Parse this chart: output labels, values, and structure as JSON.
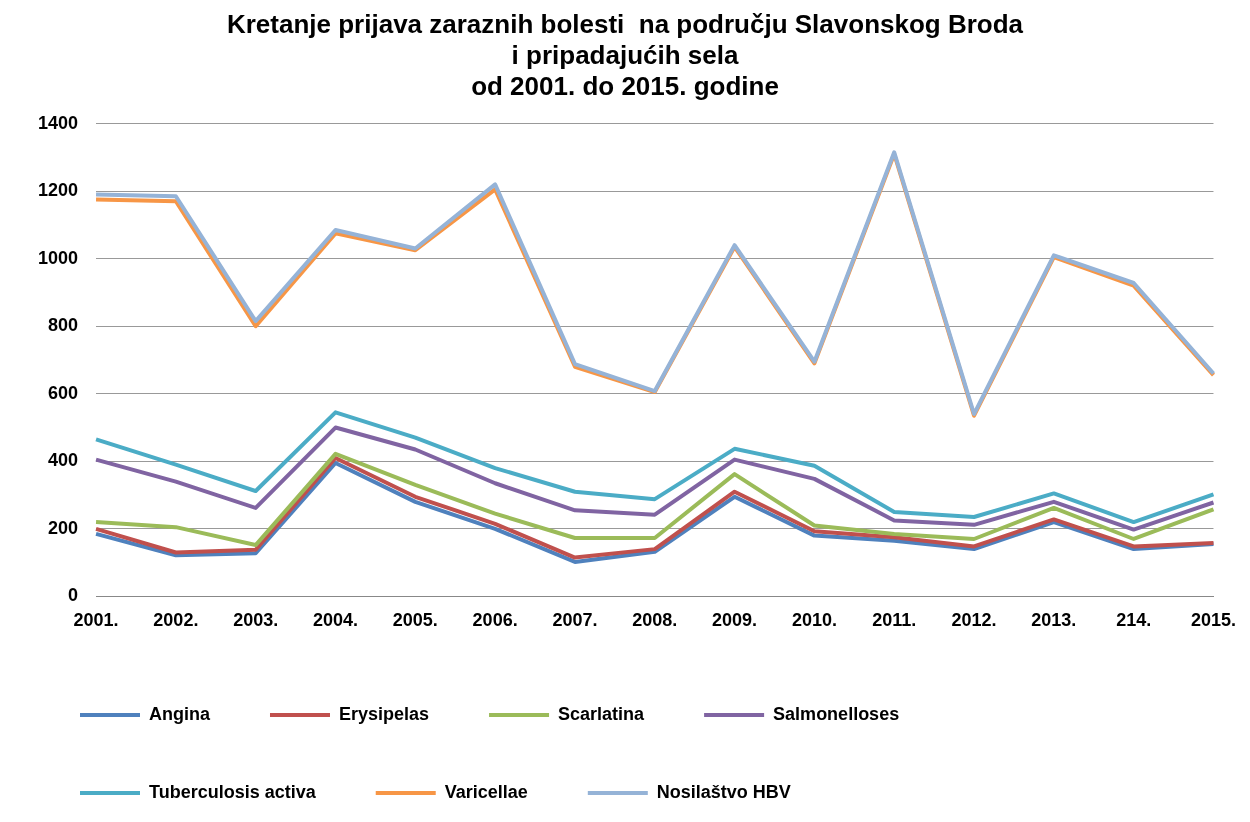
{
  "chart_data": {
    "type": "line",
    "title": "Kretanje prijava zaraznih bolesti  na području Slavonskog Broda\ni pripadajućih sela\nod 2001. do 2015. godine",
    "categories": [
      "2001.",
      "2002.",
      "2003.",
      "2004.",
      "2005.",
      "2006.",
      "2007.",
      "2008.",
      "2009.",
      "2010.",
      "2011.",
      "2012.",
      "2013.",
      "214.",
      "2015."
    ],
    "series": [
      {
        "name": "Angina",
        "color": "#4f81bd",
        "values": [
          185,
          122,
          128,
          395,
          280,
          200,
          102,
          132,
          295,
          180,
          165,
          140,
          220,
          140,
          155
        ]
      },
      {
        "name": "Erysipelas",
        "color": "#c0504d",
        "values": [
          200,
          130,
          138,
          410,
          295,
          215,
          115,
          140,
          310,
          193,
          175,
          148,
          228,
          148,
          158
        ]
      },
      {
        "name": "Scarlatina",
        "color": "#9bbb59",
        "values": [
          220,
          205,
          152,
          422,
          330,
          245,
          173,
          173,
          362,
          210,
          185,
          170,
          262,
          170,
          258
        ]
      },
      {
        "name": "Salmonelloses",
        "color": "#8064a2",
        "values": [
          405,
          340,
          262,
          500,
          435,
          335,
          255,
          242,
          405,
          348,
          225,
          212,
          280,
          198,
          278
        ]
      },
      {
        "name": "Tuberculosis activa",
        "color": "#4bacc6",
        "values": [
          465,
          390,
          312,
          545,
          470,
          380,
          310,
          288,
          437,
          387,
          250,
          235,
          305,
          220,
          302
        ]
      },
      {
        "name": "Varicellae",
        "color": "#f79646",
        "values": [
          1175,
          1170,
          800,
          1075,
          1025,
          1205,
          680,
          605,
          1035,
          690,
          1310,
          535,
          1005,
          920,
          655
        ]
      },
      {
        "name": "Nosilaštvo HBV",
        "color": "#95b3d7",
        "values": [
          1190,
          1185,
          815,
          1085,
          1030,
          1220,
          688,
          608,
          1040,
          695,
          1315,
          540,
          1010,
          928,
          660
        ]
      }
    ],
    "ylim": [
      0,
      1400
    ],
    "yticks": [
      0,
      200,
      400,
      600,
      800,
      1000,
      1200,
      1400
    ],
    "grid": "y",
    "legend": "bottom",
    "marker": "none",
    "line_style": "solid"
  }
}
